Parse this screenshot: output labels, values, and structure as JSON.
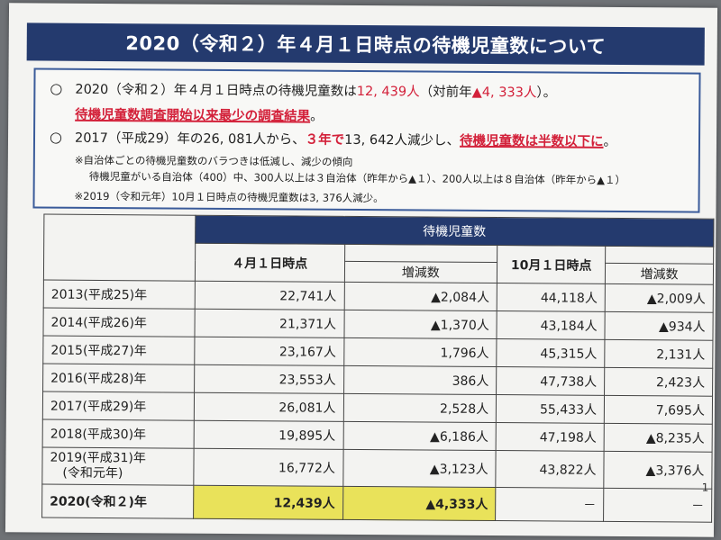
{
  "title": "2020（令和２）年４月１日時点の待機児童数について",
  "summary": {
    "line1_prefix": "2020（令和２）年４月１日時点の待機児童数は",
    "line1_value": "12, 439人",
    "line1_mid": "（対前年",
    "line1_change": "▲4, 333人",
    "line1_suffix": "）。",
    "line2": "待機児童数調査開始以来最少の調査結果",
    "line2_end": "。",
    "line3_prefix": "2017（平成29）年の26, 081人から、",
    "line3_years": "３年で",
    "line3_mid": "13, 642人減少し、",
    "line3_half": "待機児童数は半数以下に",
    "line3_end": "。",
    "note1": "※自治体ごとの待機児童数のバラつきは低減し、減少の傾向",
    "note2": "待機児童がいる自治体（400）中、300人以上は３自治体（昨年から▲１）、200人以上は８自治体（昨年から▲１）",
    "note3": "※2019（令和元年）10月１日時点の待機児童数は3, 376人減少。"
  },
  "table": {
    "group_header": "待機児童数",
    "col_apr": "４月１日時点",
    "col_apr_change": "増減数",
    "col_oct": "10月１日時点",
    "col_oct_change": "増減数",
    "rows": [
      {
        "year": "2013(平成25)年",
        "apr": "22,741人",
        "apr_change": "▲2,084人",
        "oct": "44,118人",
        "oct_change": "▲2,009人"
      },
      {
        "year": "2014(平成26)年",
        "apr": "21,371人",
        "apr_change": "▲1,370人",
        "oct": "43,184人",
        "oct_change": "▲934人"
      },
      {
        "year": "2015(平成27)年",
        "apr": "23,167人",
        "apr_change": "1,796人",
        "oct": "45,315人",
        "oct_change": "2,131人"
      },
      {
        "year": "2016(平成28)年",
        "apr": "23,553人",
        "apr_change": "386人",
        "oct": "47,738人",
        "oct_change": "2,423人"
      },
      {
        "year": "2017(平成29)年",
        "apr": "26,081人",
        "apr_change": "2,528人",
        "oct": "55,433人",
        "oct_change": "7,695人"
      },
      {
        "year": "2018(平成30)年",
        "apr": "19,895人",
        "apr_change": "▲6,186人",
        "oct": "47,198人",
        "oct_change": "▲8,235人"
      },
      {
        "year": "2019(平成31)年",
        "year2": "(令和元年)",
        "apr": "16,772人",
        "apr_change": "▲3,123人",
        "oct": "43,822人",
        "oct_change": "▲3,376人"
      }
    ],
    "last_row": {
      "year": "2020(令和２)年",
      "apr": "12,439人",
      "apr_change": "▲4,333人",
      "oct": "－",
      "oct_change": "－"
    }
  },
  "page_number": "1"
}
